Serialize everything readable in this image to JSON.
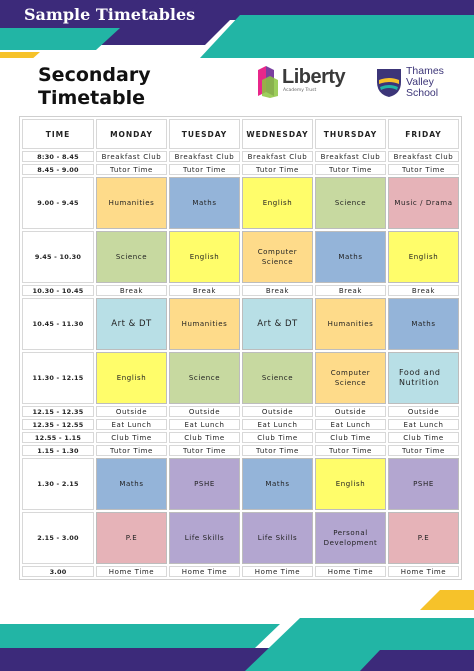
{
  "banner": {
    "title": "Sample Timetables"
  },
  "document": {
    "title_line1": "Secondary",
    "title_line2": "Timetable"
  },
  "logos": {
    "liberty": {
      "name": "Liberty",
      "subtitle": "Academy Trust"
    },
    "tvs": {
      "line1": "Thames",
      "line2": "Valley",
      "line3": "School"
    }
  },
  "colors": {
    "teal": "#22b5a5",
    "navy": "#3c2a7a",
    "yellow": "#f6c22a",
    "humanities": "#fedb8a",
    "maths": "#94b4d9",
    "english": "#fffd6a",
    "science": "#c7d9a0",
    "music": "#e6b3b8",
    "computer": "#fedb8a",
    "art": "#b8dfe6",
    "food": "#b8dfe6",
    "pshe": "#b3a6d0",
    "pe": "#e6b3b8",
    "life": "#b3a6d0",
    "personal": "#b3a6d0"
  },
  "timetable": {
    "headers": [
      "TIME",
      "MONDAY",
      "TUESDAY",
      "WEDNESDAY",
      "THURSDAY",
      "FRIDAY"
    ],
    "rows": [
      {
        "time": "8:30 - 8.45",
        "type": "small",
        "cells": [
          {
            "text": "Breakfast Club"
          },
          {
            "text": "Breakfast Club"
          },
          {
            "text": "Breakfast Club"
          },
          {
            "text": "Breakfast Club"
          },
          {
            "text": "Breakfast Club"
          }
        ]
      },
      {
        "time": "8.45 - 9.00",
        "type": "small",
        "cells": [
          {
            "text": "Tutor Time"
          },
          {
            "text": "Tutor Time"
          },
          {
            "text": "Tutor Time"
          },
          {
            "text": "Tutor Time"
          },
          {
            "text": "Tutor Time"
          }
        ]
      },
      {
        "time": "9.00 - 9.45",
        "type": "lesson",
        "cells": [
          {
            "text": "Humanities",
            "color": "humanities"
          },
          {
            "text": "Maths",
            "color": "maths"
          },
          {
            "text": "English",
            "color": "english"
          },
          {
            "text": "Science",
            "color": "science"
          },
          {
            "text": "Music / Drama",
            "color": "music"
          }
        ]
      },
      {
        "time": "9.45 - 10.30",
        "type": "lesson",
        "cells": [
          {
            "text": "Science",
            "color": "science"
          },
          {
            "text": "English",
            "color": "english"
          },
          {
            "text": "Computer Science",
            "color": "computer"
          },
          {
            "text": "Maths",
            "color": "maths"
          },
          {
            "text": "English",
            "color": "english"
          }
        ]
      },
      {
        "time": "10.30 - 10.45",
        "type": "small",
        "cells": [
          {
            "text": "Break"
          },
          {
            "text": "Break"
          },
          {
            "text": "Break"
          },
          {
            "text": "Break"
          },
          {
            "text": "Break"
          }
        ]
      },
      {
        "time": "10.45 - 11.30",
        "type": "lesson",
        "cells": [
          {
            "text": "Art & DT",
            "color": "art",
            "style": "big"
          },
          {
            "text": "Humanities",
            "color": "humanities"
          },
          {
            "text": "Art & DT",
            "color": "art",
            "style": "big"
          },
          {
            "text": "Humanities",
            "color": "humanities"
          },
          {
            "text": "Maths",
            "color": "maths"
          }
        ]
      },
      {
        "time": "11.30 - 12.15",
        "type": "lesson",
        "cells": [
          {
            "text": "English",
            "color": "english"
          },
          {
            "text": "Science",
            "color": "science"
          },
          {
            "text": "Science",
            "color": "science"
          },
          {
            "text": "Computer Science",
            "color": "computer"
          },
          {
            "text": "Food and Nutrition",
            "color": "food",
            "style": "left"
          }
        ]
      },
      {
        "time": "12.15 - 12.35",
        "type": "small",
        "cells": [
          {
            "text": "Outside"
          },
          {
            "text": "Outside"
          },
          {
            "text": "Outside"
          },
          {
            "text": "Outside"
          },
          {
            "text": "Outside"
          }
        ]
      },
      {
        "time": "12.35 - 12.55",
        "type": "small",
        "cells": [
          {
            "text": "Eat Lunch"
          },
          {
            "text": "Eat Lunch"
          },
          {
            "text": "Eat Lunch"
          },
          {
            "text": "Eat Lunch"
          },
          {
            "text": "Eat Lunch"
          }
        ]
      },
      {
        "time": "12.55 - 1.15",
        "type": "small",
        "cells": [
          {
            "text": "Club Time"
          },
          {
            "text": "Club Time"
          },
          {
            "text": "Club Time"
          },
          {
            "text": "Club Time"
          },
          {
            "text": "Club Time"
          }
        ]
      },
      {
        "time": "1.15 - 1.30",
        "type": "small",
        "cells": [
          {
            "text": "Tutor Time"
          },
          {
            "text": "Tutor Time"
          },
          {
            "text": "Tutor Time"
          },
          {
            "text": "Tutor Time"
          },
          {
            "text": "Tutor Time"
          }
        ]
      },
      {
        "time": "1.30 - 2.15",
        "type": "lesson",
        "cells": [
          {
            "text": "Maths",
            "color": "maths"
          },
          {
            "text": "PSHE",
            "color": "pshe"
          },
          {
            "text": "Maths",
            "color": "maths"
          },
          {
            "text": "English",
            "color": "english"
          },
          {
            "text": "PSHE",
            "color": "pshe"
          }
        ]
      },
      {
        "time": "2.15 - 3.00",
        "type": "lesson",
        "cells": [
          {
            "text": "P.E",
            "color": "pe"
          },
          {
            "text": "Life Skills",
            "color": "life"
          },
          {
            "text": "Life Skills",
            "color": "life"
          },
          {
            "text": "Personal Development",
            "color": "personal"
          },
          {
            "text": "P.E",
            "color": "pe"
          }
        ]
      },
      {
        "time": "3.00",
        "type": "small",
        "cells": [
          {
            "text": "Home Time"
          },
          {
            "text": "Home Time"
          },
          {
            "text": "Home Time"
          },
          {
            "text": "Home Time"
          },
          {
            "text": "Home Time"
          }
        ]
      }
    ]
  }
}
